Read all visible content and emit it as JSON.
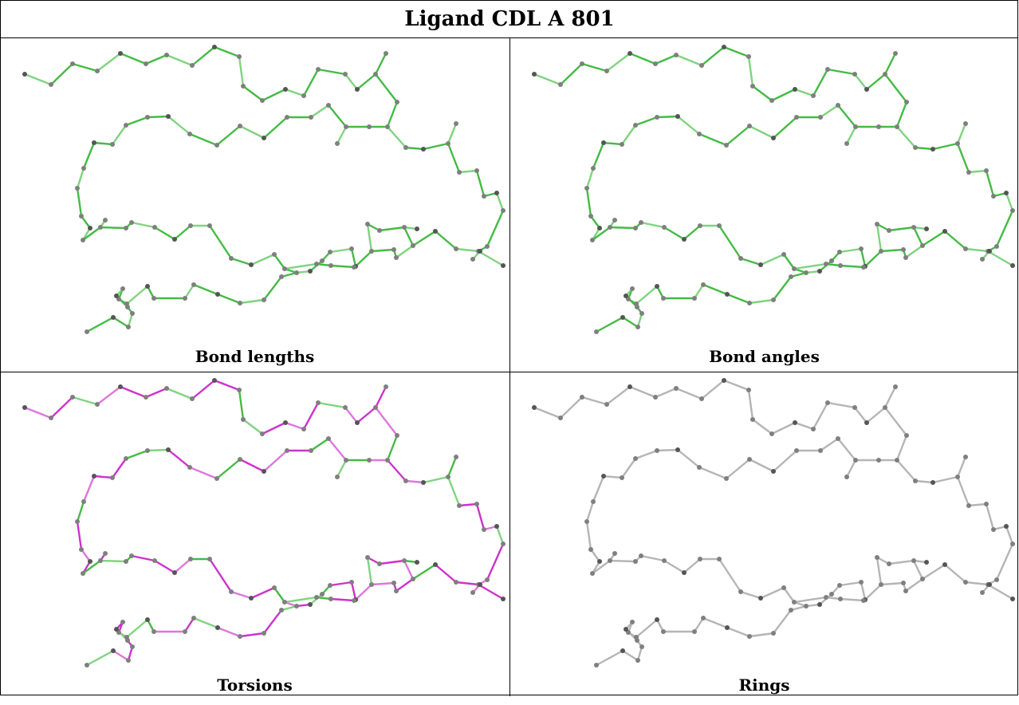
{
  "title": "Ligand CDL A 801",
  "panels": [
    {
      "caption": "Bond lengths",
      "scheme": "bonds"
    },
    {
      "caption": "Bond angles",
      "scheme": "angles"
    },
    {
      "caption": "Torsions",
      "scheme": "torsions"
    },
    {
      "caption": "Rings",
      "scheme": "rings"
    }
  ],
  "colors": {
    "green": "#44bb44",
    "light_green": "#7fd47f",
    "magenta": "#cc33cc",
    "light_magenta": "#dd77dd",
    "gray": "#b5b5b5",
    "atom": "#7f7f7f",
    "atom_dark": "#555555"
  }
}
